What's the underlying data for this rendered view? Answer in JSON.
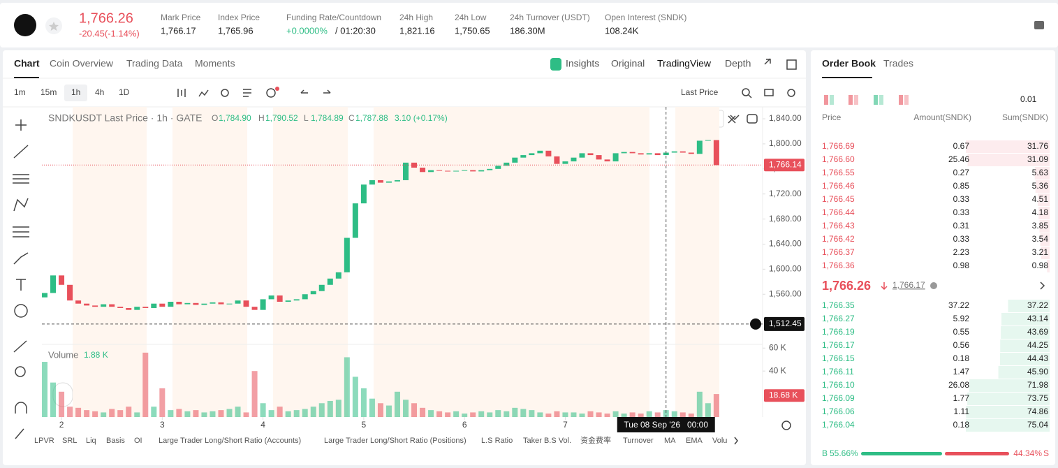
{
  "header": {
    "price": "1,766.26",
    "change": "-20.45(-1.14%)",
    "stats": [
      {
        "label": "Mark Price",
        "value": "1,766.17"
      },
      {
        "label": "Index Price",
        "value": "1,765.96"
      },
      {
        "label": "Funding Rate/Countdown",
        "value": "+0.0000%",
        "extra": "/ 01:20:30"
      },
      {
        "label": "24h High",
        "value": "1,821.16"
      },
      {
        "label": "24h Low",
        "value": "1,750.65"
      },
      {
        "label": "24h Turnover (USDT)",
        "value": "186.30M"
      },
      {
        "label": "Open Interest (SNDK)",
        "value": "108.24K"
      }
    ]
  },
  "tabs": [
    "Chart",
    "Coin Overview",
    "Trading Data",
    "Moments"
  ],
  "views": [
    "Insights",
    "Original",
    "TradingView",
    "Depth"
  ],
  "intervals": [
    "1m",
    "15m",
    "1h",
    "4h",
    "1D"
  ],
  "price_type": "Last Price",
  "legend": {
    "title": "SNDKUSDT Last Price · 1h · GATE",
    "ohlc": [
      {
        "k": "O",
        "v": "1,784.90"
      },
      {
        "k": "H",
        "v": "1,790.52"
      },
      {
        "k": "L",
        "v": "1,784.89"
      },
      {
        "k": "C",
        "v": "1,787.88"
      }
    ],
    "change": "3.10 (+0.17%)"
  },
  "chart": {
    "first_open": 1555,
    "hours": [
      0,
      2,
      4,
      6,
      8,
      10,
      12,
      14,
      16,
      18,
      20,
      22,
      24,
      26,
      28,
      30,
      32,
      34,
      36,
      38,
      40,
      42,
      44,
      46,
      48,
      50,
      52,
      54,
      56,
      58,
      60,
      62,
      64,
      66,
      68,
      70,
      72,
      74,
      76,
      78,
      80,
      82,
      84,
      86,
      88,
      90,
      92,
      94,
      96,
      98,
      100,
      102,
      104,
      106,
      108,
      110,
      112,
      114,
      116,
      118,
      120,
      122,
      124,
      126,
      128,
      130,
      132,
      134,
      136,
      138,
      140,
      142,
      144,
      146,
      148,
      150,
      152,
      154,
      156,
      158,
      160
    ],
    "closes": [
      1562,
      1590,
      1575,
      1550,
      1545,
      1542,
      1540,
      1544,
      1540,
      1538,
      1535,
      1540,
      1538,
      1545,
      1540,
      1548,
      1544,
      1546,
      1543,
      1545,
      1547,
      1544,
      1545,
      1550,
      1540,
      1535,
      1552,
      1558,
      1548,
      1550,
      1552,
      1560,
      1565,
      1575,
      1585,
      1595,
      1650,
      1705,
      1735,
      1742,
      1738,
      1740,
      1742,
      1770,
      1762,
      1755,
      1758,
      1757,
      1756,
      1757,
      1758,
      1756,
      1758,
      1760,
      1765,
      1770,
      1778,
      1782,
      1785,
      1789,
      1780,
      1768,
      1772,
      1778,
      1785,
      1782,
      1775,
      1772,
      1785,
      1787,
      1785,
      1783,
      1785,
      1782,
      1786,
      1788,
      1786,
      1784,
      1805,
      1806,
      1766
    ],
    "volumes": [
      48000,
      30000,
      22000,
      9000,
      8000,
      6000,
      5000,
      4000,
      7000,
      6000,
      9000,
      4000,
      56000,
      9000,
      25000,
      6000,
      7000,
      5000,
      6000,
      4000,
      5000,
      6000,
      7000,
      9000,
      4000,
      40000,
      12000,
      6000,
      9000,
      5000,
      6000,
      7000,
      9000,
      12000,
      14000,
      15000,
      52000,
      35000,
      25000,
      16000,
      12000,
      10000,
      22000,
      15000,
      12000,
      8000,
      6000,
      5000,
      4000,
      5000,
      3000,
      4000,
      5000,
      4000,
      6000,
      5000,
      8000,
      7000,
      6000,
      4000,
      3000,
      5000,
      4000,
      4000,
      3000,
      5000,
      4000,
      3000,
      5000,
      3000,
      4000,
      3000,
      5000,
      4000,
      6000,
      5000,
      4000,
      3000,
      22000,
      12000,
      20000
    ],
    "xlim": [
      0,
      171
    ],
    "xticks": [
      {
        "value": 4,
        "label": "2"
      },
      {
        "value": 28,
        "label": "3"
      },
      {
        "value": 52,
        "label": "4"
      },
      {
        "value": 76,
        "label": "5"
      },
      {
        "value": 100,
        "label": "6"
      },
      {
        "value": 124,
        "label": "7"
      }
    ],
    "ylim": [
      1480,
      1859
    ],
    "yticks": [
      {
        "value": 1560,
        "label": "1,560.00"
      },
      {
        "value": 1600,
        "label": "1,600.00"
      },
      {
        "value": 1640,
        "label": "1,640.00"
      },
      {
        "value": 1680,
        "label": "1,680.00"
      },
      {
        "value": 1720,
        "label": "1,720.00"
      },
      {
        "value": 1760,
        "label": "1,760.00"
      },
      {
        "value": 1800,
        "label": "1,800.00"
      },
      {
        "value": 1840,
        "label": "1,840.00"
      }
    ],
    "last_price": {
      "value": 1766.14,
      "label": "1,766.14"
    },
    "cursor_price": {
      "value": 1512.45,
      "label": "1,512.45"
    },
    "cursor_time": {
      "value": 148,
      "label": "Tue 08 Sep '26   00:00"
    },
    "vlim": [
      0,
      62000
    ],
    "vticks": [
      {
        "value": 40000,
        "label": "40 K"
      },
      {
        "value": 60000,
        "label": "60 K"
      }
    ],
    "volume_title": "Volume",
    "volume_value": "1.88 K",
    "last_volume": {
      "value": 18680,
      "label": "18.68 K"
    }
  },
  "indicators": [
    "LPVR",
    "SRL",
    "Liq",
    "Basis",
    "OI",
    "Large Trader Long/Short Ratio (Accounts)",
    "Large Trader Long/Short Ratio (Positions)",
    "L.S Ratio",
    "Taker B.S Vol.",
    "资金费率",
    "Turnover",
    "MA",
    "EMA",
    "Volu"
  ],
  "orderbook": {
    "tabs": [
      "Order Book",
      "Trades"
    ],
    "step": "0.01",
    "columns": [
      "Price",
      "Amount(SNDK)",
      "Sum(SNDK)"
    ],
    "asks": [
      {
        "price": "1,766.69",
        "amount": "0.67",
        "sum": 31.76
      },
      {
        "price": "1,766.60",
        "amount": "25.46",
        "sum": 31.09
      },
      {
        "price": "1,766.55",
        "amount": "0.27",
        "sum": 5.63
      },
      {
        "price": "1,766.46",
        "amount": "0.85",
        "sum": 5.36
      },
      {
        "price": "1,766.45",
        "amount": "0.33",
        "sum": 4.51
      },
      {
        "price": "1,766.44",
        "amount": "0.33",
        "sum": 4.18
      },
      {
        "price": "1,766.43",
        "amount": "0.31",
        "sum": 3.85
      },
      {
        "price": "1,766.42",
        "amount": "0.33",
        "sum": 3.54
      },
      {
        "price": "1,766.37",
        "amount": "2.23",
        "sum": 3.21
      },
      {
        "price": "1,766.36",
        "amount": "0.98",
        "sum": 0.98
      }
    ],
    "last": "1,766.26",
    "mark": "1,766.17",
    "bids": [
      {
        "price": "1,766.35",
        "amount": "37.22",
        "sum": 37.22
      },
      {
        "price": "1,766.27",
        "amount": "5.92",
        "sum": 43.14
      },
      {
        "price": "1,766.19",
        "amount": "0.55",
        "sum": 43.69
      },
      {
        "price": "1,766.17",
        "amount": "0.56",
        "sum": 44.25
      },
      {
        "price": "1,766.15",
        "amount": "0.18",
        "sum": 44.43
      },
      {
        "price": "1,766.11",
        "amount": "1.47",
        "sum": {
          "value": 45.9,
          "label": "45.90"
        }
      },
      {
        "price": "1,766.10",
        "amount": "26.08",
        "sum": 71.98
      },
      {
        "price": "1,766.09",
        "amount": "1.77",
        "sum": 73.75
      },
      {
        "price": "1,766.06",
        "amount": "1.11",
        "sum": 74.86
      },
      {
        "price": "1,766.04",
        "amount": "0.18",
        "sum": 75.04
      }
    ],
    "buy_label": "B",
    "sell_label": "S",
    "buy": {
      "value": 55.66,
      "label": "55.66%"
    },
    "sell": {
      "value": 44.34,
      "label": "44.34%"
    }
  }
}
